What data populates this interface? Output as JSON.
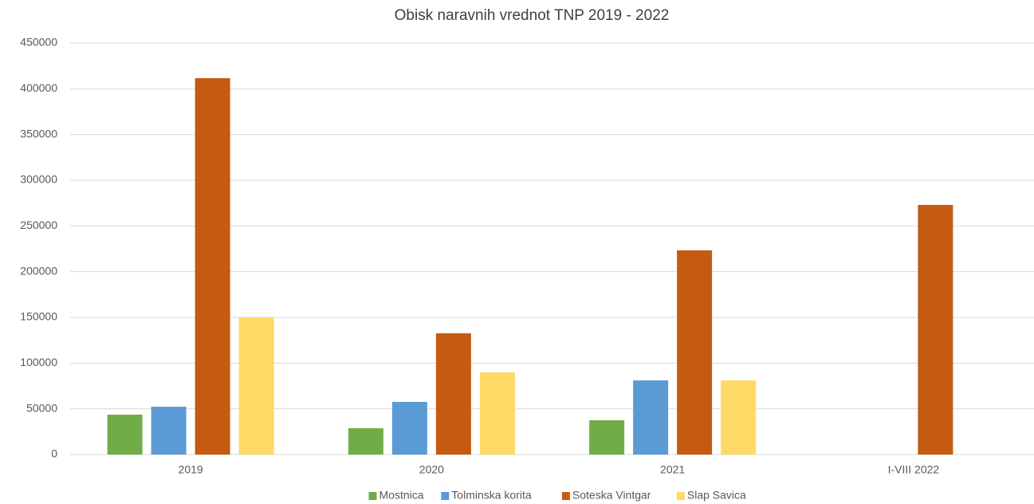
{
  "chart_data": {
    "type": "bar",
    "title": "Obisk naravnih vrednot TNP 2019 - 2022",
    "categories": [
      "2019",
      "2020",
      "2021",
      "I-VIII 2022"
    ],
    "series": [
      {
        "name": "Mostnica",
        "color": "#70ad47",
        "values": [
          43600,
          28800,
          37500,
          null
        ]
      },
      {
        "name": "Tolminska korita",
        "color": "#5b9bd5",
        "values": [
          52300,
          57600,
          81100,
          null
        ]
      },
      {
        "name": "Soteska Vintgar",
        "color": "#c55a11",
        "values": [
          411600,
          132600,
          223300,
          273000
        ]
      },
      {
        "name": "Slap Savica",
        "color": "#ffd966",
        "values": [
          150000,
          89800,
          81100,
          null
        ]
      }
    ],
    "ylim": [
      0,
      450000
    ],
    "yticks": [
      0,
      50000,
      100000,
      150000,
      200000,
      250000,
      300000,
      350000,
      400000,
      450000
    ],
    "grid": true,
    "legend": "bottom"
  }
}
